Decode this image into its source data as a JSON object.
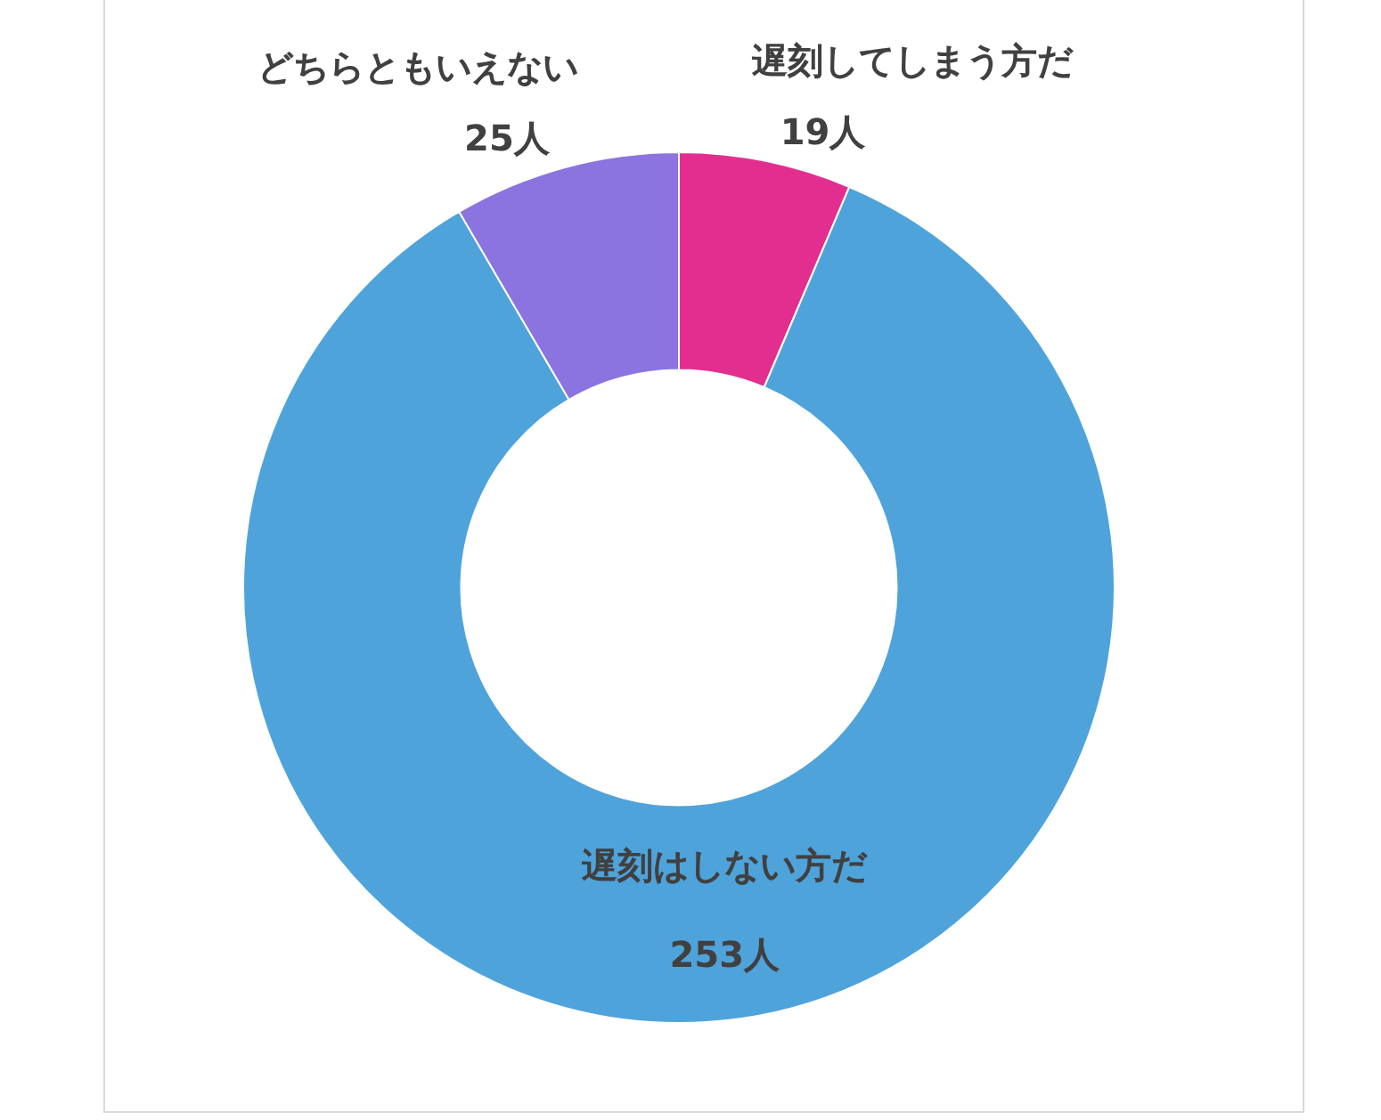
{
  "chart_data": {
    "type": "donut",
    "categories": [
      "遅刻してしまう方だ",
      "遅刻はしない方だ",
      "どちらともいえない"
    ],
    "values": [
      19,
      253,
      25
    ],
    "value_labels": [
      "19人",
      "253人",
      "25人"
    ],
    "colors": [
      "#e22f8f",
      "#4fa3db",
      "#8b74e0"
    ],
    "legend": false
  }
}
